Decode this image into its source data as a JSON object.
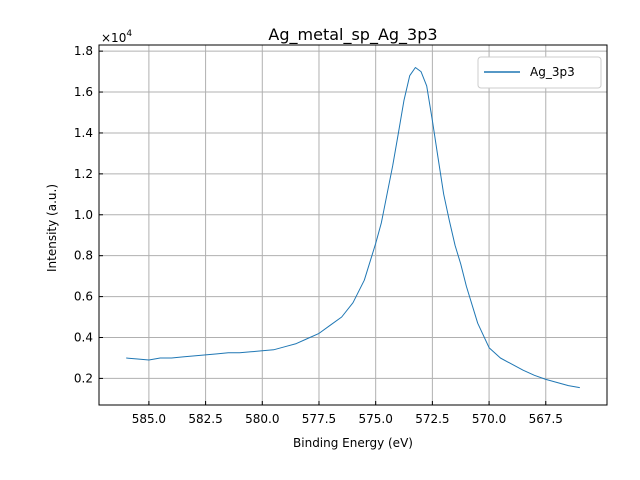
{
  "chart_data": {
    "type": "line",
    "title": "Ag_metal_sp_Ag_3p3",
    "xlabel": "Binding Energy (eV)",
    "ylabel": "Intensity (a.u.)",
    "y_multiplier": "×10",
    "y_exponent": "4",
    "x_reversed": true,
    "xlim": [
      587.2,
      564.8
    ],
    "ylim": [
      700,
      18300
    ],
    "xticks": [
      585.0,
      582.5,
      580.0,
      577.5,
      575.0,
      572.5,
      570.0,
      567.5
    ],
    "xtick_labels": [
      "585.0",
      "582.5",
      "580.0",
      "577.5",
      "575.0",
      "572.5",
      "570.0",
      "567.5"
    ],
    "yticks": [
      2000,
      4000,
      6000,
      8000,
      10000,
      12000,
      14000,
      16000,
      18000
    ],
    "ytick_labels": [
      "0.2",
      "0.4",
      "0.6",
      "0.8",
      "1.0",
      "1.2",
      "1.4",
      "1.6",
      "1.8"
    ],
    "grid": true,
    "legend_position": "top-right",
    "series": [
      {
        "name": "Ag_3p3",
        "color": "#1f77b4",
        "x": [
          586.0,
          585.5,
          585.0,
          584.5,
          584.0,
          583.5,
          583.0,
          582.5,
          582.0,
          581.5,
          581.0,
          580.5,
          580.0,
          579.5,
          579.0,
          578.5,
          578.0,
          577.5,
          577.0,
          576.5,
          576.0,
          575.5,
          575.0,
          574.75,
          574.5,
          574.25,
          574.0,
          573.75,
          573.5,
          573.25,
          573.0,
          572.75,
          572.5,
          572.25,
          572.0,
          571.75,
          571.5,
          571.25,
          571.0,
          570.5,
          570.0,
          569.5,
          569.0,
          568.5,
          568.0,
          567.5,
          567.0,
          566.5,
          566.0
        ],
        "y": [
          3000,
          2950,
          2900,
          3000,
          3000,
          3050,
          3100,
          3150,
          3200,
          3250,
          3250,
          3300,
          3350,
          3400,
          3550,
          3700,
          3950,
          4200,
          4600,
          5000,
          5700,
          6800,
          8600,
          9600,
          11000,
          12400,
          14000,
          15600,
          16800,
          17200,
          17000,
          16300,
          14600,
          12800,
          11000,
          9700,
          8500,
          7600,
          6500,
          4700,
          3500,
          3000,
          2700,
          2400,
          2150,
          1950,
          1800,
          1650,
          1550
        ]
      }
    ]
  }
}
